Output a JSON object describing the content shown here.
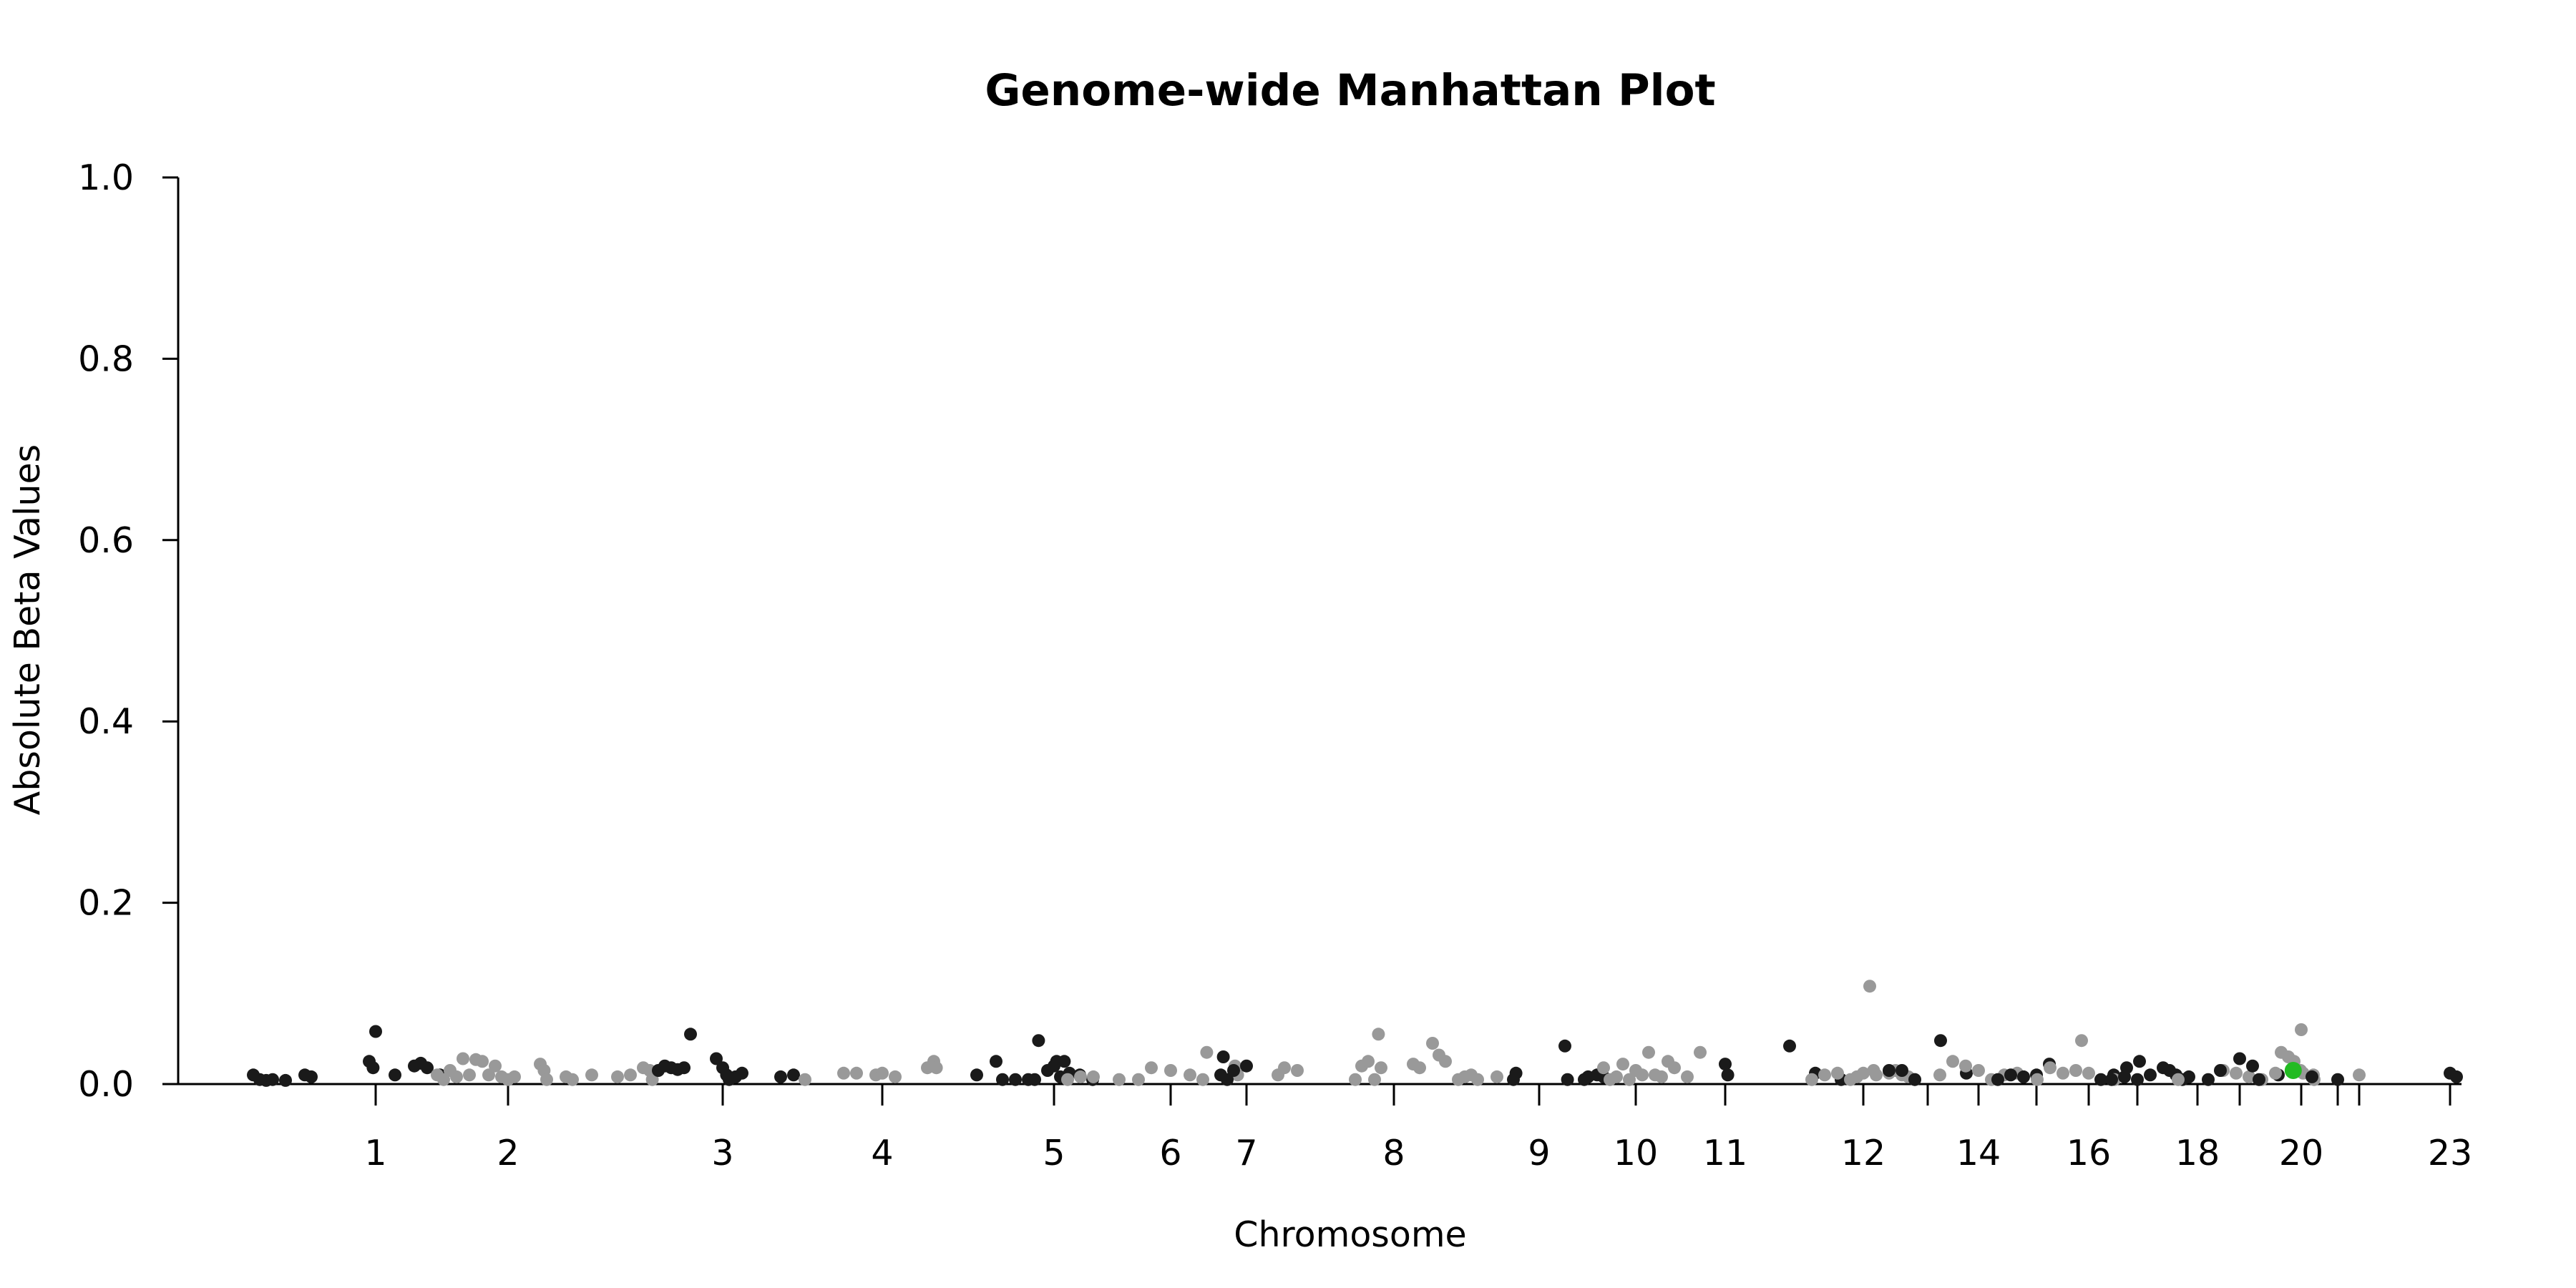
{
  "chart_data": {
    "type": "scatter",
    "title": "Genome-wide Manhattan Plot",
    "xlabel": "Chromosome",
    "ylabel": "Absolute Beta Values",
    "ylim": [
      0,
      1.0
    ],
    "y_ticks": [
      "0.0",
      "0.2",
      "0.4",
      "0.6",
      "0.8",
      "1.0"
    ],
    "x_tick_labels": [
      "1",
      "2",
      "3",
      "4",
      "5",
      "6",
      "7",
      "8",
      "9",
      "10",
      "11",
      "12",
      "14",
      "16",
      "18",
      "20",
      "23"
    ],
    "x_tick_marks": [
      1,
      2,
      3,
      4,
      5,
      6,
      7,
      8,
      9,
      10,
      11,
      12,
      13,
      14,
      15,
      16,
      17,
      18,
      19,
      20,
      21,
      22,
      23
    ],
    "grid": false,
    "legend": "none",
    "colors": {
      "odd": "#1a1a1a",
      "even": "#999999",
      "highlight": "#22bb22"
    },
    "series": [
      {
        "chromosome": 1,
        "points": [
          [
            -0.95,
            0.01
          ],
          [
            -0.9,
            0.005
          ],
          [
            -0.85,
            0.004
          ],
          [
            -0.8,
            0.005
          ],
          [
            -0.7,
            0.004
          ],
          [
            -0.55,
            0.01
          ],
          [
            -0.5,
            0.008
          ],
          [
            -0.05,
            0.025
          ],
          [
            -0.02,
            0.018
          ],
          [
            0.0,
            0.058
          ],
          [
            0.15,
            0.01
          ],
          [
            0.3,
            0.02
          ],
          [
            0.35,
            0.023
          ],
          [
            0.4,
            0.018
          ],
          [
            0.5,
            0.01
          ]
        ]
      },
      {
        "chromosome": 2,
        "points": [
          [
            -0.55,
            0.01
          ],
          [
            -0.5,
            0.005
          ],
          [
            -0.45,
            0.015
          ],
          [
            -0.4,
            0.008
          ],
          [
            -0.35,
            0.028
          ],
          [
            -0.3,
            0.01
          ],
          [
            -0.25,
            0.027
          ],
          [
            -0.2,
            0.025
          ],
          [
            -0.15,
            0.01
          ],
          [
            -0.1,
            0.02
          ],
          [
            -0.05,
            0.008
          ],
          [
            0.0,
            0.005
          ],
          [
            0.05,
            0.008
          ],
          [
            0.25,
            0.022
          ],
          [
            0.28,
            0.015
          ],
          [
            0.3,
            0.005
          ],
          [
            0.45,
            0.008
          ],
          [
            0.5,
            0.005
          ],
          [
            0.65,
            0.01
          ],
          [
            0.85,
            0.008
          ],
          [
            0.95,
            0.01
          ],
          [
            1.05,
            0.018
          ],
          [
            1.1,
            0.015
          ],
          [
            1.12,
            0.005
          ]
        ]
      },
      {
        "chromosome": 3,
        "points": [
          [
            -0.5,
            0.015
          ],
          [
            -0.45,
            0.02
          ],
          [
            -0.4,
            0.018
          ],
          [
            -0.35,
            0.016
          ],
          [
            -0.3,
            0.018
          ],
          [
            -0.25,
            0.055
          ],
          [
            -0.05,
            0.028
          ],
          [
            0.0,
            0.018
          ],
          [
            0.03,
            0.01
          ],
          [
            0.05,
            0.005
          ],
          [
            0.1,
            0.008
          ],
          [
            0.15,
            0.012
          ],
          [
            0.45,
            0.008
          ],
          [
            0.55,
            0.01
          ]
        ]
      },
      {
        "chromosome": 4,
        "points": [
          [
            -0.6,
            0.005
          ],
          [
            -0.3,
            0.012
          ],
          [
            -0.2,
            0.012
          ],
          [
            -0.05,
            0.01
          ],
          [
            0.0,
            0.012
          ],
          [
            0.1,
            0.008
          ],
          [
            0.35,
            0.018
          ],
          [
            0.4,
            0.025
          ],
          [
            0.42,
            0.018
          ]
        ]
      },
      {
        "chromosome": 5,
        "points": [
          [
            -0.6,
            0.01
          ],
          [
            -0.45,
            0.025
          ],
          [
            -0.4,
            0.005
          ],
          [
            -0.3,
            0.005
          ],
          [
            -0.2,
            0.005
          ],
          [
            -0.15,
            0.005
          ],
          [
            -0.12,
            0.048
          ],
          [
            -0.05,
            0.015
          ],
          [
            0.0,
            0.02
          ],
          [
            0.02,
            0.025
          ],
          [
            0.05,
            0.008
          ],
          [
            0.08,
            0.025
          ],
          [
            0.12,
            0.012
          ],
          [
            0.2,
            0.01
          ],
          [
            0.3,
            0.005
          ]
        ]
      },
      {
        "chromosome": 6,
        "points": [
          [
            -0.8,
            0.005
          ],
          [
            -0.7,
            0.008
          ],
          [
            -0.6,
            0.008
          ],
          [
            -0.4,
            0.005
          ],
          [
            -0.25,
            0.005
          ],
          [
            -0.15,
            0.018
          ],
          [
            0.0,
            0.015
          ],
          [
            0.15,
            0.01
          ],
          [
            0.25,
            0.005
          ],
          [
            0.28,
            0.035
          ],
          [
            0.5,
            0.02
          ],
          [
            0.52,
            0.01
          ]
        ]
      },
      {
        "chromosome": 7,
        "points": [
          [
            -0.2,
            0.01
          ],
          [
            -0.18,
            0.03
          ],
          [
            -0.15,
            0.005
          ],
          [
            -0.1,
            0.015
          ],
          [
            0.0,
            0.02
          ]
        ]
      },
      {
        "chromosome": 8,
        "points": [
          [
            -0.9,
            0.01
          ],
          [
            -0.85,
            0.018
          ],
          [
            -0.75,
            0.015
          ],
          [
            -0.3,
            0.005
          ],
          [
            -0.25,
            0.02
          ],
          [
            -0.2,
            0.025
          ],
          [
            -0.15,
            0.005
          ],
          [
            -0.12,
            0.055
          ],
          [
            -0.1,
            0.018
          ],
          [
            0.15,
            0.022
          ],
          [
            0.2,
            0.018
          ],
          [
            0.3,
            0.045
          ],
          [
            0.35,
            0.032
          ],
          [
            0.4,
            0.025
          ],
          [
            0.5,
            0.005
          ],
          [
            0.55,
            0.008
          ],
          [
            0.6,
            0.01
          ],
          [
            0.65,
            0.005
          ],
          [
            0.8,
            0.008
          ]
        ]
      },
      {
        "chromosome": 9,
        "points": [
          [
            -0.2,
            0.005
          ],
          [
            -0.18,
            0.012
          ],
          [
            0.2,
            0.042
          ],
          [
            0.22,
            0.005
          ],
          [
            0.35,
            0.005
          ],
          [
            0.38,
            0.008
          ],
          [
            0.45,
            0.01
          ],
          [
            0.5,
            0.008
          ]
        ]
      },
      {
        "chromosome": 10,
        "points": [
          [
            -0.25,
            0.018
          ],
          [
            -0.2,
            0.005
          ],
          [
            -0.15,
            0.008
          ],
          [
            -0.1,
            0.022
          ],
          [
            -0.05,
            0.005
          ],
          [
            0.0,
            0.015
          ],
          [
            0.05,
            0.01
          ],
          [
            0.1,
            0.035
          ],
          [
            0.15,
            0.01
          ],
          [
            0.2,
            0.008
          ],
          [
            0.25,
            0.025
          ],
          [
            0.3,
            0.018
          ],
          [
            0.4,
            0.008
          ],
          [
            0.5,
            0.035
          ]
        ]
      },
      {
        "chromosome": 11,
        "points": [
          [
            0.0,
            0.022
          ],
          [
            0.02,
            0.01
          ],
          [
            0.5,
            0.042
          ],
          [
            0.7,
            0.012
          ],
          [
            0.9,
            0.005
          ]
        ]
      },
      {
        "chromosome": 12,
        "points": [
          [
            -0.4,
            0.005
          ],
          [
            -0.3,
            0.01
          ],
          [
            -0.2,
            0.012
          ],
          [
            -0.1,
            0.005
          ],
          [
            -0.05,
            0.008
          ],
          [
            0.0,
            0.012
          ],
          [
            0.05,
            0.108
          ],
          [
            0.08,
            0.015
          ],
          [
            0.1,
            0.01
          ],
          [
            0.2,
            0.012
          ],
          [
            0.25,
            0.015
          ],
          [
            0.3,
            0.01
          ],
          [
            0.35,
            0.008
          ],
          [
            0.4,
            0.005
          ]
        ]
      },
      {
        "chromosome": 13,
        "points": [
          [
            -0.3,
            0.015
          ],
          [
            -0.2,
            0.015
          ],
          [
            -0.1,
            0.005
          ],
          [
            0.1,
            0.048
          ],
          [
            0.3,
            0.012
          ]
        ]
      },
      {
        "chromosome": 14,
        "points": [
          [
            -0.3,
            0.01
          ],
          [
            -0.2,
            0.025
          ],
          [
            -0.1,
            0.02
          ],
          [
            0.0,
            0.015
          ],
          [
            0.1,
            0.005
          ],
          [
            0.2,
            0.01
          ],
          [
            0.3,
            0.012
          ],
          [
            0.8,
            0.048
          ]
        ]
      },
      {
        "chromosome": 15,
        "points": [
          [
            -0.3,
            0.005
          ],
          [
            -0.2,
            0.01
          ],
          [
            -0.1,
            0.008
          ],
          [
            0.0,
            0.01
          ],
          [
            0.1,
            0.022
          ],
          [
            0.5,
            0.005
          ],
          [
            0.6,
            0.01
          ],
          [
            0.7,
            0.018
          ],
          [
            0.8,
            0.025
          ]
        ]
      },
      {
        "chromosome": 16,
        "points": [
          [
            -0.4,
            0.005
          ],
          [
            -0.3,
            0.018
          ],
          [
            -0.2,
            0.012
          ],
          [
            -0.1,
            0.015
          ],
          [
            0.0,
            0.012
          ],
          [
            0.2,
            0.005
          ]
        ]
      },
      {
        "chromosome": 17,
        "points": [
          [
            -0.2,
            0.005
          ],
          [
            -0.1,
            0.008
          ],
          [
            0.0,
            0.005
          ],
          [
            0.1,
            0.01
          ],
          [
            0.2,
            0.018
          ],
          [
            0.25,
            0.015
          ],
          [
            0.3,
            0.01
          ],
          [
            0.35,
            0.005
          ],
          [
            0.4,
            0.008
          ],
          [
            0.55,
            0.005
          ]
        ]
      },
      {
        "chromosome": 18,
        "points": [
          [
            -0.15,
            0.005
          ],
          [
            0.2,
            0.015
          ],
          [
            0.3,
            0.012
          ],
          [
            0.4,
            0.008
          ],
          [
            0.5,
            0.005
          ],
          [
            0.65,
            0.035
          ],
          [
            0.75,
            0.025
          ],
          [
            0.8,
            0.015
          ],
          [
            0.82,
            0.012
          ],
          [
            0.9,
            0.01
          ]
        ]
      },
      {
        "chromosome": 19,
        "points": [
          [
            -0.15,
            0.015
          ],
          [
            0.0,
            0.028
          ],
          [
            0.1,
            0.02
          ],
          [
            0.15,
            0.005
          ],
          [
            0.3,
            0.01
          ]
        ]
      },
      {
        "chromosome": 20,
        "points": [
          [
            -0.2,
            0.012
          ],
          [
            -0.1,
            0.03
          ],
          [
            -0.05,
            0.018
          ],
          [
            0.0,
            0.06
          ],
          [
            0.1,
            0.005
          ]
        ]
      },
      {
        "chromosome": 21,
        "points": [
          [
            -0.2,
            0.008
          ],
          [
            0.0,
            0.005
          ]
        ]
      },
      {
        "chromosome": 22,
        "points": [
          [
            0.0,
            0.01
          ]
        ]
      },
      {
        "chromosome": 23,
        "points": [
          [
            0.0,
            0.012
          ],
          [
            0.05,
            0.008
          ]
        ]
      }
    ],
    "highlight_points": [
      [
        19.87,
        0.015
      ]
    ]
  }
}
